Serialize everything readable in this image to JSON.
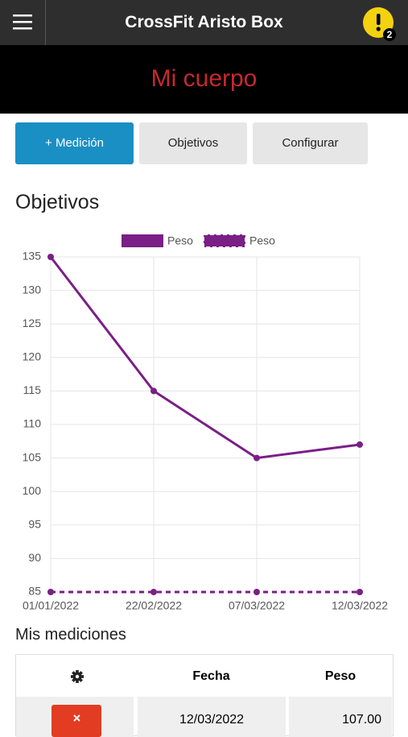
{
  "header": {
    "title": "CrossFit Aristo Box",
    "badge": "2"
  },
  "banner": {
    "title": "Mi cuerpo"
  },
  "tabs": [
    "+ Medición",
    "Objetivos",
    "Configurar"
  ],
  "section_title": "Objetivos",
  "chart_data": {
    "type": "line",
    "categories": [
      "01/01/2022",
      "22/02/2022",
      "07/03/2022",
      "12/03/2022"
    ],
    "series": [
      {
        "name": "Peso",
        "color": "#7a1f86",
        "dashed": false,
        "values": [
          135,
          115,
          105,
          107
        ]
      },
      {
        "name": "Peso",
        "color": "#7a1f86",
        "dashed": true,
        "values": [
          85,
          85,
          85,
          85
        ]
      }
    ],
    "ylim": [
      85,
      135
    ],
    "yticks": [
      85,
      90,
      95,
      100,
      105,
      110,
      115,
      120,
      125,
      130,
      135
    ],
    "grid": true,
    "legend": "top"
  },
  "measurements": {
    "title": "Mis mediciones",
    "header": [
      "Fecha",
      "Peso"
    ],
    "rows": [
      [
        "12/03/2022",
        "107.00"
      ]
    ]
  }
}
